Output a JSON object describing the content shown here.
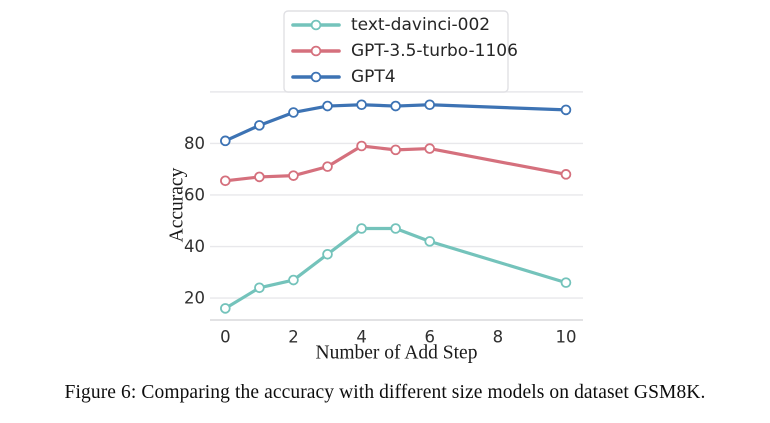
{
  "figure": {
    "caption": "Figure 6: Comparing the accuracy with different size models on dataset GSM8K."
  },
  "chart_data": {
    "type": "line",
    "title": "",
    "xlabel": "Number of Add Step",
    "ylabel": "Accuracy",
    "x": [
      0,
      1,
      2,
      3,
      4,
      5,
      6,
      10
    ],
    "series": [
      {
        "name": "text-davinci-002",
        "color": "#74c3bb",
        "values": [
          16,
          24,
          27,
          37,
          47,
          47,
          42,
          26
        ]
      },
      {
        "name": "GPT-3.5-turbo-1106",
        "color": "#d5707d",
        "values": [
          65.5,
          67,
          67.5,
          71,
          79,
          77.5,
          78,
          68
        ]
      },
      {
        "name": "GPT4",
        "color": "#3d73b4",
        "values": [
          81,
          87,
          92,
          94.5,
          95,
          94.5,
          95,
          93
        ]
      }
    ],
    "x_tick_labels": [
      "0",
      "2",
      "4",
      "6",
      "8",
      "10"
    ],
    "x_tick_values": [
      0,
      2,
      4,
      6,
      8,
      10
    ],
    "y_tick_labels": [
      "20",
      "40",
      "60",
      "80"
    ],
    "y_tick_values": [
      20,
      40,
      60,
      80
    ],
    "grid_y_values": [
      20,
      40,
      60,
      80,
      100
    ],
    "xlim": [
      -0.45,
      10.5
    ],
    "ylim": [
      11.5,
      101.5
    ],
    "grid": true,
    "marker": "circle-open",
    "legend_position": "top-center"
  },
  "style_colors": {
    "grid_line": "#e8e8eb",
    "axis_line": "#d8d8dc",
    "tick_label": "#303030",
    "axis_title": "#1a1a1a",
    "legend_border": "#e0e0e4",
    "legend_text": "#262626",
    "background": "#ffffff"
  }
}
